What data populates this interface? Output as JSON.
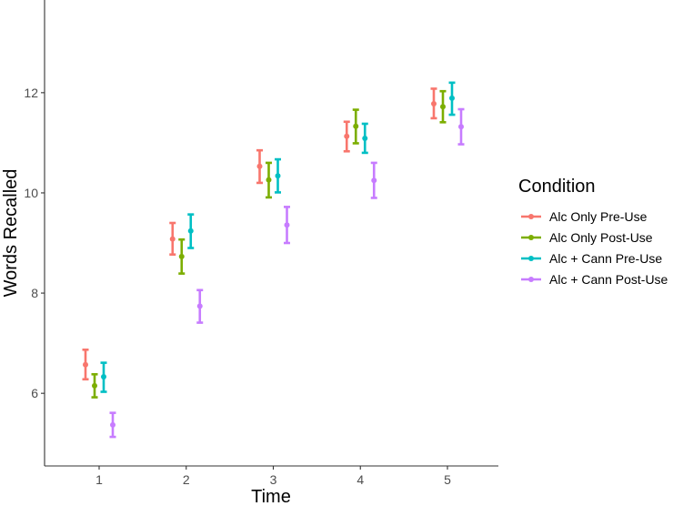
{
  "chart_data": {
    "type": "scatter",
    "title": "",
    "xlabel": "Time",
    "ylabel": "Words Recalled",
    "categories": [
      "1",
      "2",
      "3",
      "4",
      "5"
    ],
    "ylim": [
      4.55,
      13.85
    ],
    "yticks": [
      6,
      8,
      10,
      12
    ],
    "grid": false,
    "legend": {
      "title": "Condition",
      "placement": "right"
    },
    "series": [
      {
        "name": "Alc Only Pre-Use",
        "color": "#F8766D",
        "values": [
          6.57,
          9.08,
          10.53,
          11.13,
          11.78
        ],
        "lower": [
          6.28,
          8.77,
          10.2,
          10.83,
          11.49
        ],
        "upper": [
          6.87,
          9.4,
          10.85,
          11.42,
          12.08
        ]
      },
      {
        "name": "Alc Only Post-Use",
        "color": "#7CAE00",
        "values": [
          6.15,
          8.73,
          10.26,
          11.33,
          11.72
        ],
        "lower": [
          5.92,
          8.39,
          9.91,
          10.99,
          11.41
        ],
        "upper": [
          6.38,
          9.07,
          10.6,
          11.66,
          12.03
        ]
      },
      {
        "name": "Alc + Cann Pre-Use",
        "color": "#00BFC4",
        "values": [
          6.33,
          9.24,
          10.34,
          11.09,
          11.89
        ],
        "lower": [
          6.03,
          8.9,
          10.01,
          10.8,
          11.56
        ],
        "upper": [
          6.61,
          9.57,
          10.67,
          11.38,
          12.2
        ]
      },
      {
        "name": "Alc + Cann Post-Use",
        "color": "#C77CFF",
        "values": [
          5.37,
          7.74,
          9.36,
          10.25,
          11.32
        ],
        "lower": [
          5.13,
          7.41,
          9.0,
          9.9,
          10.97
        ],
        "upper": [
          5.61,
          8.06,
          9.72,
          10.6,
          11.67
        ]
      }
    ]
  }
}
